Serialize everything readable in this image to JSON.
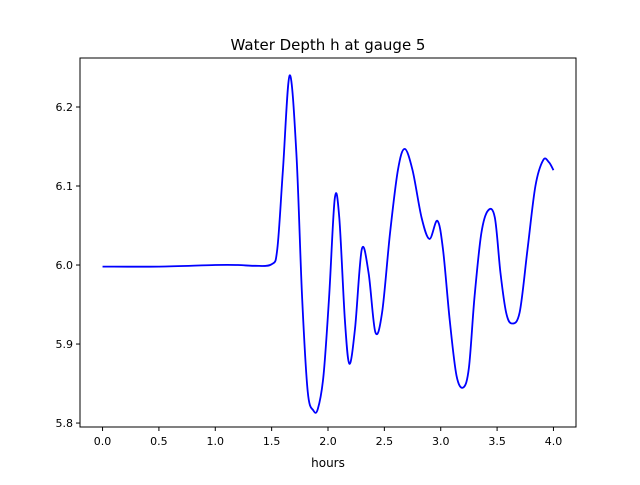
{
  "chart_data": {
    "type": "line",
    "title": "Water Depth h at gauge 5",
    "xlabel": "hours",
    "ylabel": "",
    "xlim": [
      -0.2,
      4.2
    ],
    "ylim": [
      5.795,
      6.262
    ],
    "xticks": [
      0.0,
      0.5,
      1.0,
      1.5,
      2.0,
      2.5,
      3.0,
      3.5,
      4.0
    ],
    "xtick_labels": [
      "0.0",
      "0.5",
      "1.0",
      "1.5",
      "2.0",
      "2.5",
      "3.0",
      "3.5",
      "4.0"
    ],
    "yticks": [
      5.8,
      5.9,
      6.0,
      6.1,
      6.2
    ],
    "ytick_labels": [
      "5.8",
      "5.9",
      "6.0",
      "6.1",
      "6.2"
    ],
    "grid": false,
    "series": [
      {
        "name": "h",
        "color": "#0000ff",
        "x": [
          0,
          0.5,
          1.0,
          1.2,
          1.35,
          1.5,
          1.55,
          1.6,
          1.66,
          1.72,
          1.77,
          1.82,
          1.87,
          1.91,
          1.96,
          2.01,
          2.06,
          2.1,
          2.15,
          2.19,
          2.24,
          2.3,
          2.36,
          2.42,
          2.48,
          2.55,
          2.62,
          2.68,
          2.75,
          2.83,
          2.9,
          2.97,
          3.02,
          3.08,
          3.14,
          3.2,
          3.25,
          3.3,
          3.36,
          3.42,
          3.48,
          3.53,
          3.58,
          3.63,
          3.7,
          3.77,
          3.84,
          3.91,
          3.96,
          4.0
        ],
        "y": [
          5.998,
          5.998,
          6.0,
          6.0,
          5.999,
          6.001,
          6.02,
          6.12,
          6.24,
          6.14,
          5.96,
          5.84,
          5.816,
          5.818,
          5.86,
          5.96,
          6.084,
          6.06,
          5.93,
          5.875,
          5.92,
          6.02,
          5.99,
          5.915,
          5.94,
          6.04,
          6.12,
          6.147,
          6.12,
          6.06,
          6.033,
          6.056,
          6.02,
          5.93,
          5.86,
          5.845,
          5.87,
          5.96,
          6.04,
          6.069,
          6.06,
          5.99,
          5.94,
          5.926,
          5.94,
          6.02,
          6.1,
          6.133,
          6.13,
          6.12
        ]
      }
    ]
  }
}
